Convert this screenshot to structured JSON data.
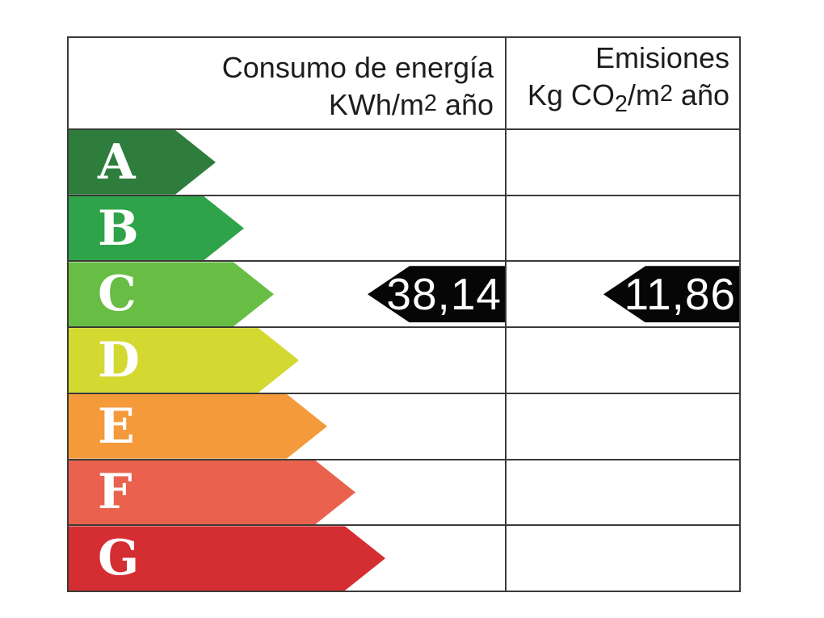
{
  "header": {
    "consumption": {
      "line1": "Consumo de energía",
      "unit_prefix": "KWh/m",
      "unit_sup": "2",
      "unit_suffix": " año"
    },
    "emissions": {
      "line1": "Emisiones",
      "unit_kg": "Kg CO",
      "unit_sub": "2",
      "unit_mid": "/m",
      "unit_sup": "2",
      "unit_suffix": " año"
    }
  },
  "scale": {
    "bands": [
      {
        "letter": "A",
        "color": "#2e7d3c"
      },
      {
        "letter": "B",
        "color": "#2fa34a"
      },
      {
        "letter": "C",
        "color": "#68bd45"
      },
      {
        "letter": "D",
        "color": "#d3d930"
      },
      {
        "letter": "E",
        "color": "#f49a3b"
      },
      {
        "letter": "F",
        "color": "#ea614e"
      },
      {
        "letter": "G",
        "color": "#d42e32"
      }
    ]
  },
  "values": {
    "consumption": {
      "display": "38,14",
      "rating": "C"
    },
    "emissions": {
      "display": "11,86",
      "rating": "C"
    }
  },
  "chart_data": {
    "type": "table",
    "title": "Etiqueta de calificación de eficiencia energética",
    "columns": [
      {
        "header": "Consumo de energía KWh/m2 año",
        "value": 38.14,
        "display": "38,14",
        "rating": "C"
      },
      {
        "header": "Emisiones Kg CO2/m2 año",
        "value": 11.86,
        "display": "11,86",
        "rating": "C"
      }
    ],
    "scale_letters": [
      "A",
      "B",
      "C",
      "D",
      "E",
      "F",
      "G"
    ],
    "scale_colors": [
      "#2e7d3c",
      "#2fa34a",
      "#68bd45",
      "#d3d930",
      "#f49a3b",
      "#ea614e",
      "#d42e32"
    ],
    "marker_color": "#060606",
    "layout": {
      "arrow_lengths_increase_downward": true,
      "markers_on_row": "C"
    }
  }
}
